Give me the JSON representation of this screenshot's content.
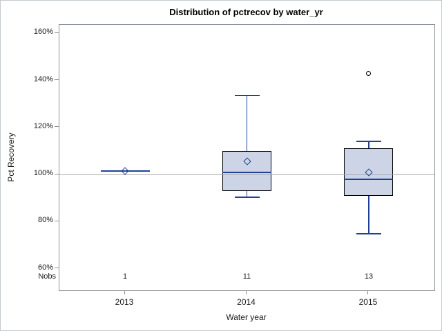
{
  "figure": {
    "title": "Distribution of pctrecov by water_yr",
    "y_axis": {
      "label": "Pct Recovery"
    },
    "x_axis": {
      "label": "Water year"
    },
    "nobs_label": "Nobs"
  },
  "chart_data": {
    "type": "boxplot",
    "title": "Distribution of pctrecov by water_yr",
    "xlabel": "Water year",
    "ylabel": "Pct Recovery",
    "categories": [
      "2013",
      "2014",
      "2015"
    ],
    "ylim": [
      55,
      165
    ],
    "y_ticks": [
      {
        "value": 160,
        "label": "160%"
      },
      {
        "value": 140,
        "label": "140%"
      },
      {
        "value": 120,
        "label": "120%"
      },
      {
        "value": 100,
        "label": "100%"
      },
      {
        "value": 80,
        "label": "80%"
      },
      {
        "value": 60,
        "label": "60%"
      }
    ],
    "reference_line_value": 100,
    "grid": "off",
    "groups": [
      {
        "category": "2013",
        "nobs": "1",
        "min": 101.4,
        "q1": 101.4,
        "median": 101.4,
        "q3": 101.4,
        "max": 101.4,
        "mean": 101.4,
        "outliers": []
      },
      {
        "category": "2014",
        "nobs": "11",
        "min": 90.4,
        "q1": 93,
        "median": 101,
        "q3": 110,
        "max": 133.6,
        "mean": 105.5,
        "outliers": []
      },
      {
        "category": "2015",
        "nobs": "13",
        "min": 74.8,
        "q1": 91,
        "median": 98,
        "q3": 111,
        "max": 114,
        "mean": 100.8,
        "outliers": [
          143
        ]
      }
    ],
    "colors": {
      "box_fill": "#ccd4e6",
      "box_border": "#000000",
      "line": "#1f4096",
      "reference_line": "#a9a9a9",
      "frame": "#8b9196"
    }
  }
}
